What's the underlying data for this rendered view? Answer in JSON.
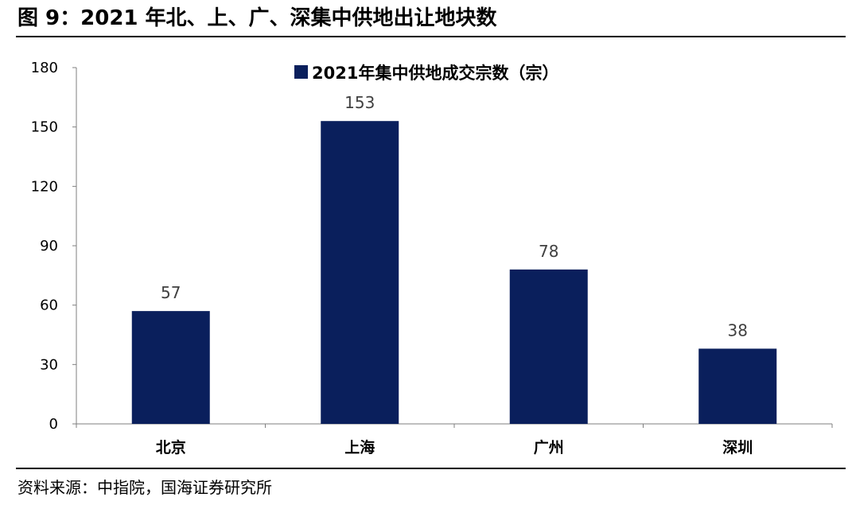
{
  "figure": {
    "title": "图 9：2021 年北、上、广、深集中供地出让地块数",
    "source": "资料来源：中指院，国海证券研究所"
  },
  "chart_data": {
    "type": "bar",
    "categories": [
      "北京",
      "上海",
      "广州",
      "深圳"
    ],
    "series": [
      {
        "name": "2021年集中供地成交宗数（宗）",
        "values": [
          57,
          153,
          78,
          38
        ],
        "color": "#0a1f5c"
      }
    ],
    "title": "",
    "xlabel": "",
    "ylabel": "",
    "ylim": [
      0,
      180
    ],
    "yticks": [
      0,
      30,
      60,
      90,
      120,
      150,
      180
    ],
    "grid": false,
    "legend_position": "top-center",
    "data_labels": true
  }
}
